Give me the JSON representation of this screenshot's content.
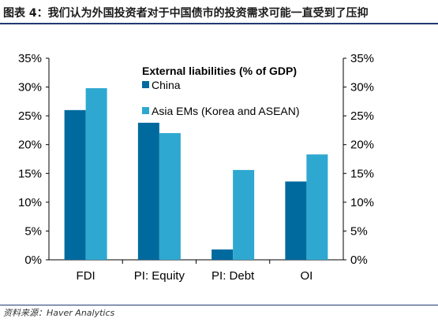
{
  "figure": {
    "title": "图表 4：我们认为外国投资者对于中国债市的投资需求可能一直受到了压抑",
    "source": "资料来源：Haver Analytics"
  },
  "chart_data": {
    "type": "bar",
    "title": "External liabilities (% of GDP)",
    "categories": [
      "FDI",
      "PI: Equity",
      "PI: Debt",
      "OI"
    ],
    "series": [
      {
        "name": "China",
        "values": [
          26,
          23.8,
          1.8,
          13.6
        ],
        "color": "#006a9e"
      },
      {
        "name": "Asia EMs (Korea and ASEAN)",
        "values": [
          29.8,
          22,
          15.6,
          18.3
        ],
        "color": "#2ea8d0"
      }
    ],
    "ylim": [
      0,
      35
    ],
    "yticks": [
      "0%",
      "5%",
      "10%",
      "15%",
      "20%",
      "25%",
      "30%",
      "35%"
    ],
    "secondary_axis": true,
    "grid": false,
    "legend_position": "top-center"
  }
}
